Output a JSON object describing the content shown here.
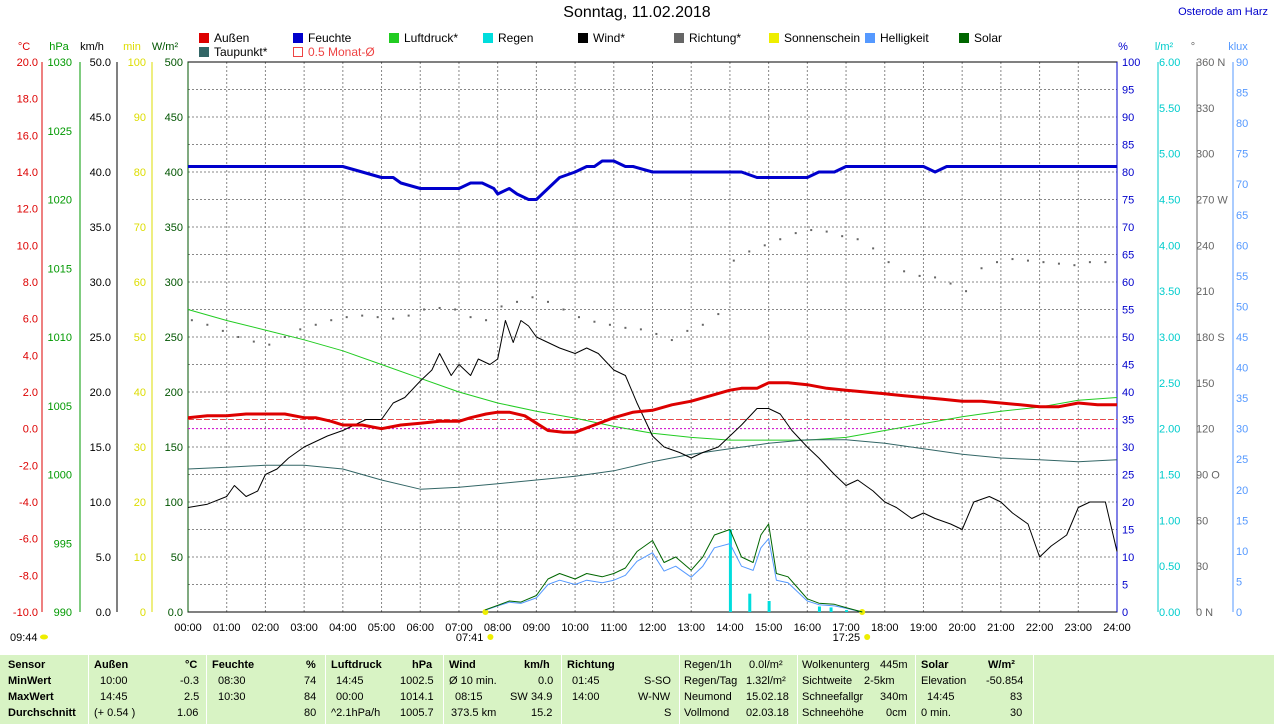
{
  "header": {
    "title": "Sonntag, 11.02.2018",
    "location": "Osterode am Harz"
  },
  "legend": [
    {
      "label": "Außen",
      "color": "#dd0000"
    },
    {
      "label": "Feuchte",
      "color": "#0000cc"
    },
    {
      "label": "Luftdruck*",
      "color": "#22cc22"
    },
    {
      "label": "Regen",
      "color": "#00dddd"
    },
    {
      "label": "Wind*",
      "color": "#000000"
    },
    {
      "label": "Richtung*",
      "color": "#666666"
    },
    {
      "label": "Sonnenschein",
      "color": "#eeee00"
    },
    {
      "label": "Helligkeit",
      "color": "#5599ff"
    },
    {
      "label": "Solar",
      "color": "#006600"
    },
    {
      "label": "Taupunkt*",
      "color": "#336666"
    },
    {
      "label": "0.5 Monat-Ø",
      "color": "#ee4444"
    }
  ],
  "axes": {
    "temp": {
      "unit": "°C",
      "color": "#dd0000",
      "ticks": [
        "20.0",
        "18.0",
        "16.0",
        "14.0",
        "12.0",
        "10.0",
        "8.0",
        "6.0",
        "4.0",
        "2.0",
        "0.0",
        "-2.0",
        "-4.0",
        "-6.0",
        "-8.0",
        "-10.0"
      ]
    },
    "press": {
      "unit": "hPa",
      "color": "#009900",
      "ticks": [
        "1030",
        "1025",
        "1020",
        "1015",
        "1010",
        "1005",
        "1000",
        "995",
        "990"
      ]
    },
    "wind": {
      "unit": "km/h",
      "color": "#000000",
      "ticks": [
        "50.0",
        "45.0",
        "40.0",
        "35.0",
        "30.0",
        "25.0",
        "20.0",
        "15.0",
        "10.0",
        "5.0",
        "0.0"
      ]
    },
    "min": {
      "unit": "min",
      "color": "#dddd00",
      "ticks": [
        "100",
        "90",
        "80",
        "70",
        "60",
        "50",
        "40",
        "30",
        "20",
        "10",
        "0"
      ]
    },
    "solar": {
      "unit": "W/m²",
      "color": "#005500",
      "ticks": [
        "500",
        "450",
        "400",
        "350",
        "300",
        "250",
        "200",
        "150",
        "100",
        "50",
        "0.0"
      ]
    },
    "hum": {
      "unit": "%",
      "color": "#0000cc",
      "ticks": [
        "100",
        "95",
        "90",
        "85",
        "80",
        "75",
        "70",
        "65",
        "60",
        "55",
        "50",
        "45",
        "40",
        "35",
        "30",
        "25",
        "20",
        "15",
        "10",
        "5",
        "0"
      ]
    },
    "rain": {
      "unit": "l/m²",
      "color": "#00cccc",
      "ticks": [
        "6.00",
        "5.50",
        "5.00",
        "4.50",
        "4.00",
        "3.50",
        "3.00",
        "2.50",
        "2.00",
        "1.50",
        "1.00",
        "0.50",
        "0.00"
      ]
    },
    "dir": {
      "unit": "°",
      "color": "#666666",
      "ticks": [
        "360 N",
        "330",
        "300",
        "270 W",
        "240",
        "210",
        "180 S",
        "150",
        "120",
        "90 O",
        "60",
        "30",
        "0 N"
      ]
    },
    "lux": {
      "unit": "klux",
      "color": "#5599ff",
      "ticks": [
        "90",
        "85",
        "80",
        "75",
        "70",
        "65",
        "60",
        "55",
        "50",
        "45",
        "40",
        "35",
        "30",
        "25",
        "20",
        "15",
        "10",
        "5",
        "0"
      ]
    }
  },
  "time_labels": [
    "00:00",
    "01:00",
    "02:00",
    "03:00",
    "04:00",
    "05:00",
    "06:00",
    "07:00",
    "08:00",
    "09:00",
    "10:00",
    "11:00",
    "12:00",
    "13:00",
    "14:00",
    "15:00",
    "16:00",
    "17:00",
    "18:00",
    "19:00",
    "20:00",
    "21:00",
    "22:00",
    "23:00",
    "24:00"
  ],
  "markers": {
    "moonrise": "09:44",
    "sunrise": "07:41",
    "sunset": "17:25"
  },
  "chart_data": {
    "type": "line",
    "title": "Sonntag, 11.02.2018",
    "x_unit": "hours",
    "xlim": [
      0,
      24
    ],
    "reference_lines": {
      "month_avg_temp": 0.5,
      "zero_temp": 0.0
    },
    "series": [
      {
        "name": "Außen",
        "unit": "°C",
        "ylim": [
          -10,
          20
        ],
        "color": "#dd0000",
        "x": [
          0,
          0.5,
          1,
          1.5,
          2,
          2.5,
          3,
          3.3,
          3.7,
          4,
          4.5,
          5,
          5.5,
          6,
          6.5,
          7,
          7.3,
          7.7,
          8,
          8.3,
          8.7,
          9,
          9.3,
          9.7,
          10,
          10.5,
          11,
          11.5,
          12,
          12.5,
          13,
          13.5,
          14,
          14.3,
          14.7,
          15,
          15.5,
          16,
          16.5,
          17,
          17.5,
          18,
          18.5,
          19,
          19.5,
          20,
          20.5,
          21,
          21.5,
          22,
          22.5,
          23,
          23.5,
          24
        ],
        "y": [
          0.6,
          0.7,
          0.7,
          0.8,
          0.8,
          0.8,
          0.6,
          0.6,
          0.4,
          0.2,
          0.2,
          0.0,
          0.2,
          0.3,
          0.4,
          0.4,
          0.6,
          0.8,
          0.9,
          0.9,
          0.7,
          0.3,
          -0.1,
          -0.2,
          -0.2,
          0.2,
          0.6,
          0.9,
          1.0,
          1.3,
          1.5,
          1.8,
          2.1,
          2.2,
          2.2,
          2.5,
          2.5,
          2.4,
          2.2,
          2.1,
          2.0,
          1.9,
          1.8,
          1.7,
          1.6,
          1.5,
          1.5,
          1.4,
          1.3,
          1.2,
          1.2,
          1.4,
          1.3,
          1.3
        ]
      },
      {
        "name": "Feuchte",
        "unit": "%",
        "ylim": [
          0,
          100
        ],
        "color": "#0000cc",
        "x": [
          0,
          0.5,
          1,
          1.5,
          2,
          2.5,
          3,
          3.5,
          4,
          4.5,
          5,
          5.3,
          5.5,
          6,
          6.3,
          6.5,
          7,
          7.3,
          7.6,
          7.9,
          8,
          8.3,
          8.5,
          8.8,
          9,
          9.3,
          9.6,
          10,
          10.3,
          10.5,
          10.7,
          11,
          11.3,
          11.5,
          12,
          12.5,
          13,
          13.5,
          14,
          14.3,
          14.7,
          15,
          15.5,
          16,
          16.3,
          16.7,
          17,
          17.5,
          18,
          18.5,
          19,
          19.3,
          19.6,
          20,
          20.5,
          21,
          21.5,
          22,
          22.5,
          23,
          23.5,
          24
        ],
        "y": [
          81,
          81,
          81,
          81,
          81,
          81,
          81,
          81,
          81,
          80,
          79,
          79,
          78,
          77,
          77,
          77,
          77,
          78,
          78,
          77,
          76,
          77,
          76,
          75,
          75,
          77,
          79,
          80,
          81,
          81,
          82,
          82,
          81,
          81,
          80,
          80,
          80,
          80,
          80,
          80,
          79,
          79,
          79,
          79,
          80,
          80,
          81,
          81,
          81,
          81,
          81,
          80,
          81,
          81,
          81,
          81,
          81,
          81,
          81,
          81,
          81,
          81
        ]
      },
      {
        "name": "Luftdruck*",
        "unit": "hPa",
        "ylim": [
          990,
          1030
        ],
        "color": "#22cc22",
        "x": [
          0,
          1,
          2,
          3,
          4,
          5,
          6,
          7,
          8,
          9,
          10,
          11,
          12,
          13,
          14,
          15,
          16,
          17,
          18,
          19,
          20,
          21,
          22,
          23,
          24
        ],
        "y": [
          1012.0,
          1011.2,
          1010.5,
          1009.8,
          1009.0,
          1008.0,
          1007.0,
          1006.0,
          1005.2,
          1004.6,
          1004.1,
          1003.5,
          1003.0,
          1002.7,
          1002.5,
          1002.5,
          1002.5,
          1002.7,
          1003.2,
          1003.7,
          1004.2,
          1004.6,
          1004.9,
          1005.4,
          1005.6
        ]
      },
      {
        "name": "Taupunkt*",
        "unit": "°C",
        "ylim": [
          -10,
          20
        ],
        "color": "#336666",
        "x": [
          0,
          1,
          2,
          3,
          4,
          5,
          6,
          7,
          8,
          9,
          10,
          11,
          12,
          13,
          14,
          15,
          16,
          17,
          18,
          19,
          20,
          21,
          22,
          23,
          24
        ],
        "y": [
          -2.2,
          -2.1,
          -2.0,
          -2.0,
          -2.2,
          -2.8,
          -3.3,
          -3.2,
          -3.0,
          -2.8,
          -2.6,
          -2.3,
          -1.8,
          -1.4,
          -1.1,
          -0.8,
          -0.6,
          -0.6,
          -0.8,
          -1.1,
          -1.4,
          -1.6,
          -1.7,
          -1.8,
          -1.7
        ]
      },
      {
        "name": "Wind*",
        "unit": "km/h",
        "ylim": [
          0,
          50
        ],
        "color": "#000000",
        "x": [
          0,
          0.5,
          1,
          1.2,
          1.5,
          1.8,
          2,
          2.3,
          2.6,
          3,
          3.3,
          3.6,
          4,
          4.3,
          4.6,
          5,
          5.3,
          5.6,
          6,
          6.3,
          6.5,
          6.8,
          7,
          7.3,
          7.5,
          7.8,
          8,
          8.2,
          8.4,
          8.6,
          8.8,
          9,
          9.3,
          9.6,
          10,
          10.3,
          10.6,
          11,
          11.3,
          11.6,
          12,
          12.3,
          12.7,
          13,
          13.3,
          13.7,
          14,
          14.3,
          14.7,
          15,
          15.3,
          15.6,
          16,
          16.3,
          16.7,
          17,
          17.3,
          17.7,
          18,
          18.3,
          18.7,
          19,
          19.3,
          19.7,
          20,
          20.3,
          20.7,
          21,
          21.3,
          21.7,
          22,
          22.3,
          22.7,
          23,
          23.3,
          23.7,
          24
        ],
        "y": [
          9.5,
          9.8,
          10.5,
          11.5,
          10.5,
          11,
          12.5,
          13,
          14,
          15,
          15.5,
          16,
          16.5,
          17,
          17.5,
          17.5,
          19,
          19.5,
          21,
          22,
          23.5,
          21.5,
          22.5,
          21.5,
          23,
          22.5,
          23,
          26.5,
          24.5,
          26.5,
          26,
          25,
          24.5,
          24,
          23.5,
          24,
          23.5,
          22,
          21.5,
          19,
          16,
          15,
          14.5,
          14,
          14.5,
          15,
          16,
          17,
          18.5,
          18.5,
          18,
          16.5,
          15,
          14,
          12.5,
          11.5,
          12,
          11,
          10,
          9.5,
          8.5,
          9,
          8.5,
          8,
          7.5,
          10,
          10.5,
          10,
          9,
          8,
          5,
          6,
          7,
          9.5,
          10,
          10,
          5.5
        ]
      },
      {
        "name": "Richtung*",
        "unit": "°",
        "ylim": [
          0,
          360
        ],
        "color": "#666666",
        "x": [
          0.1,
          0.5,
          0.9,
          1.3,
          1.7,
          2.1,
          2.5,
          2.9,
          3.3,
          3.7,
          4.1,
          4.5,
          4.9,
          5.3,
          5.7,
          6.1,
          6.5,
          6.9,
          7.3,
          7.7,
          8.1,
          8.5,
          8.9,
          9.3,
          9.7,
          10.1,
          10.5,
          10.9,
          11.3,
          11.7,
          12.1,
          12.5,
          12.9,
          13.3,
          13.7,
          14.1,
          14.5,
          14.9,
          15.3,
          15.7,
          16.1,
          16.5,
          16.9,
          17.3,
          17.7,
          18.1,
          18.5,
          18.9,
          19.3,
          19.7,
          20.1,
          20.5,
          20.9,
          21.3,
          21.7,
          22.1,
          22.5,
          22.9,
          23.3,
          23.7
        ],
        "y": [
          191,
          188,
          184,
          180,
          177,
          175,
          180,
          185,
          188,
          191,
          193,
          194,
          193,
          192,
          194,
          198,
          199,
          198,
          193,
          191,
          200,
          203,
          206,
          203,
          198,
          193,
          190,
          188,
          186,
          185,
          182,
          178,
          184,
          188,
          195,
          230,
          236,
          240,
          244,
          248,
          250,
          249,
          246,
          244,
          238,
          229,
          223,
          220,
          219,
          215,
          210,
          225,
          229,
          231,
          230,
          229,
          228,
          227,
          229,
          229
        ]
      },
      {
        "name": "Solar",
        "unit": "W/m²",
        "ylim": [
          0,
          500
        ],
        "color": "#006600",
        "x": [
          7.68,
          8,
          8.3,
          8.6,
          9,
          9.3,
          9.6,
          10,
          10.3,
          10.7,
          11,
          11.3,
          11.6,
          12,
          12.3,
          12.6,
          13,
          13.3,
          13.6,
          14,
          14.3,
          14.6,
          14.8,
          15,
          15.2,
          15.5,
          15.8,
          16,
          16.3,
          16.7,
          17,
          17.42
        ],
        "y": [
          2,
          6,
          10,
          9,
          15,
          30,
          35,
          30,
          35,
          32,
          35,
          40,
          55,
          65,
          45,
          50,
          38,
          50,
          70,
          75,
          50,
          45,
          70,
          80,
          35,
          32,
          20,
          12,
          8,
          7,
          4,
          0
        ]
      },
      {
        "name": "Helligkeit",
        "unit": "klux",
        "ylim": [
          0,
          90
        ],
        "color": "#5599ff",
        "x": [
          7.68,
          8,
          8.3,
          8.6,
          9,
          9.3,
          9.6,
          10,
          10.3,
          10.7,
          11,
          11.3,
          11.6,
          12,
          12.3,
          12.6,
          13,
          13.3,
          13.6,
          14,
          14.3,
          14.6,
          14.8,
          15,
          15.2,
          15.5,
          15.8,
          16,
          16.3,
          16.7,
          17,
          17.42
        ],
        "y": [
          0.3,
          1,
          1.6,
          1.4,
          2.3,
          4.5,
          5.2,
          4.5,
          5.2,
          4.8,
          5.2,
          6,
          8.3,
          9.7,
          6.7,
          7.5,
          5.7,
          7.5,
          10.5,
          11.2,
          7.5,
          6.8,
          10.5,
          12,
          5.2,
          4.8,
          3,
          1.8,
          1.2,
          1,
          0.6,
          0
        ]
      },
      {
        "name": "Regen",
        "unit": "l/m²",
        "ylim": [
          0,
          6
        ],
        "color": "#00dddd",
        "x": [
          14.0,
          14.5,
          15.0,
          16.3,
          16.6,
          17.0
        ],
        "y": [
          0.9,
          0.2,
          0.12,
          0.06,
          0.05,
          0.02
        ]
      }
    ]
  },
  "stats": {
    "col1": {
      "header": "Sensor",
      "r1": "MinWert",
      "r2": "MaxWert",
      "r3": "Durchschnitt"
    },
    "col2": {
      "header": "Außen",
      "unit": "°C",
      "r1t": "10:00",
      "r1v": "-0.3",
      "r2t": "14:45",
      "r2v": "2.5",
      "r3t": "(+ 0.54 )",
      "r3v": "1.06"
    },
    "col3": {
      "header": "Feuchte",
      "unit": "%",
      "r1t": "08:30",
      "r1v": "74",
      "r2t": "10:30",
      "r2v": "84",
      "r3v": "80"
    },
    "col4": {
      "header": "Luftdruck",
      "unit": "hPa",
      "r1t": "14:45",
      "r1v": "1002.5",
      "r2t": "00:00",
      "r2v": "1014.1",
      "r3t": "^2.1hPa/h",
      "r3v": "1005.7"
    },
    "col5": {
      "header": "Wind",
      "unit": "km/h",
      "r1t": "Ø 10 min.",
      "r1v": "0.0",
      "r2t": "08:15",
      "r2m": "SW",
      "r2v": "34.9",
      "r3t": "373.5 km",
      "r3v": "15.2"
    },
    "col6": {
      "header": "Richtung",
      "r1t": "01:45",
      "r1v": "S-SO",
      "r2t": "14:00",
      "r2v": "W-NW",
      "r3v": "S"
    },
    "col7": {
      "r0a": "Regen/1h",
      "r0b": "0.0l/m²",
      "r1a": "Regen/Tag",
      "r1b": "1.32l/m²",
      "r2a": "Neumond",
      "r2b": "15.02.18",
      "r3a": "Vollmond",
      "r3b": "02.03.18"
    },
    "col8": {
      "r0a": "Wolkenunterg",
      "r0b": "445m",
      "r1a": "Sichtweite",
      "r1b": "2-5km",
      "r2a": "Schneefallgr",
      "r2b": "340m",
      "r3a": "Schneehöhe",
      "r3b": "0cm"
    },
    "col9": {
      "header": "Solar",
      "unit": "W/m²",
      "r1t": "Elevation",
      "r1v": "-50.854",
      "r2t": "14:45",
      "r2v": "83",
      "r3t": "0 min.",
      "r3v": "30"
    }
  }
}
